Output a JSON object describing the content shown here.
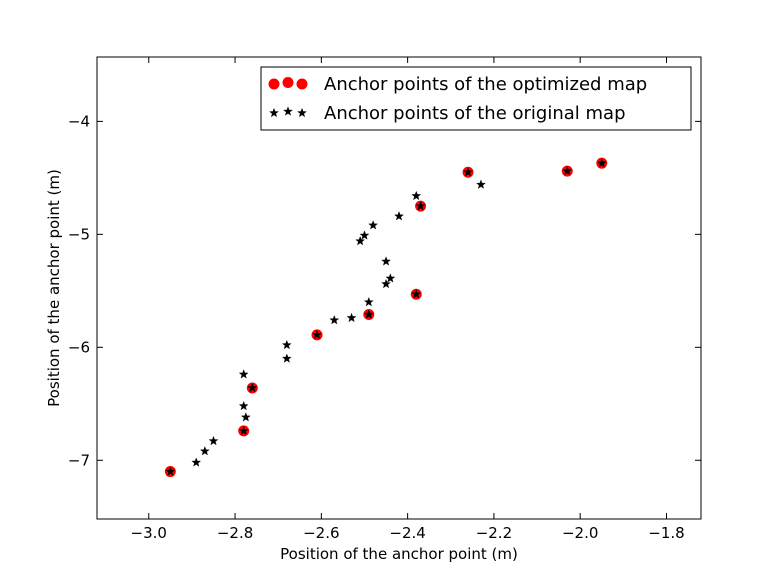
{
  "chart_data": {
    "type": "scatter",
    "title": "",
    "xlabel": "Position of the anchor point (m)",
    "ylabel": "Position of the anchor point (m)",
    "xlim": [
      -3.12,
      -1.72
    ],
    "ylim": [
      -7.52,
      -3.43
    ],
    "xticks": [
      {
        "value": -3.0,
        "label": "−3.0"
      },
      {
        "value": -2.8,
        "label": "−2.8"
      },
      {
        "value": -2.6,
        "label": "−2.6"
      },
      {
        "value": -2.4,
        "label": "−2.4"
      },
      {
        "value": -2.2,
        "label": "−2.2"
      },
      {
        "value": -2.0,
        "label": "−2.0"
      },
      {
        "value": -1.8,
        "label": "−1.8"
      }
    ],
    "yticks": [
      {
        "value": -4,
        "label": "−4"
      },
      {
        "value": -5,
        "label": "−5"
      },
      {
        "value": -6,
        "label": "−6"
      },
      {
        "value": -7,
        "label": "−7"
      }
    ],
    "grid": false,
    "legend_position": "top-right",
    "series": [
      {
        "name": "Anchor points of the optimized map",
        "marker": "circle",
        "color": "#ff0000",
        "points": [
          {
            "x": -2.95,
            "y": -7.1
          },
          {
            "x": -2.78,
            "y": -6.74
          },
          {
            "x": -2.76,
            "y": -6.36
          },
          {
            "x": -2.61,
            "y": -5.89
          },
          {
            "x": -2.49,
            "y": -5.71
          },
          {
            "x": -2.38,
            "y": -5.53
          },
          {
            "x": -2.37,
            "y": -4.75
          },
          {
            "x": -2.26,
            "y": -4.45
          },
          {
            "x": -2.03,
            "y": -4.44
          },
          {
            "x": -1.95,
            "y": -4.37
          }
        ]
      },
      {
        "name": "Anchor points of the original map",
        "marker": "star",
        "color": "#000000",
        "points": [
          {
            "x": -2.95,
            "y": -7.1
          },
          {
            "x": -2.89,
            "y": -7.02
          },
          {
            "x": -2.87,
            "y": -6.92
          },
          {
            "x": -2.85,
            "y": -6.83
          },
          {
            "x": -2.78,
            "y": -6.74
          },
          {
            "x": -2.775,
            "y": -6.62
          },
          {
            "x": -2.78,
            "y": -6.52
          },
          {
            "x": -2.76,
            "y": -6.36
          },
          {
            "x": -2.78,
            "y": -6.24
          },
          {
            "x": -2.68,
            "y": -6.1
          },
          {
            "x": -2.68,
            "y": -5.98
          },
          {
            "x": -2.61,
            "y": -5.89
          },
          {
            "x": -2.57,
            "y": -5.76
          },
          {
            "x": -2.53,
            "y": -5.74
          },
          {
            "x": -2.49,
            "y": -5.71
          },
          {
            "x": -2.49,
            "y": -5.6
          },
          {
            "x": -2.45,
            "y": -5.44
          },
          {
            "x": -2.44,
            "y": -5.39
          },
          {
            "x": -2.45,
            "y": -5.24
          },
          {
            "x": -2.38,
            "y": -5.53
          },
          {
            "x": -2.51,
            "y": -5.06
          },
          {
            "x": -2.5,
            "y": -5.01
          },
          {
            "x": -2.48,
            "y": -4.92
          },
          {
            "x": -2.42,
            "y": -4.84
          },
          {
            "x": -2.37,
            "y": -4.75
          },
          {
            "x": -2.38,
            "y": -4.66
          },
          {
            "x": -2.26,
            "y": -4.45
          },
          {
            "x": -2.23,
            "y": -4.56
          },
          {
            "x": -2.03,
            "y": -4.44
          },
          {
            "x": -1.95,
            "y": -4.37
          }
        ]
      }
    ]
  }
}
